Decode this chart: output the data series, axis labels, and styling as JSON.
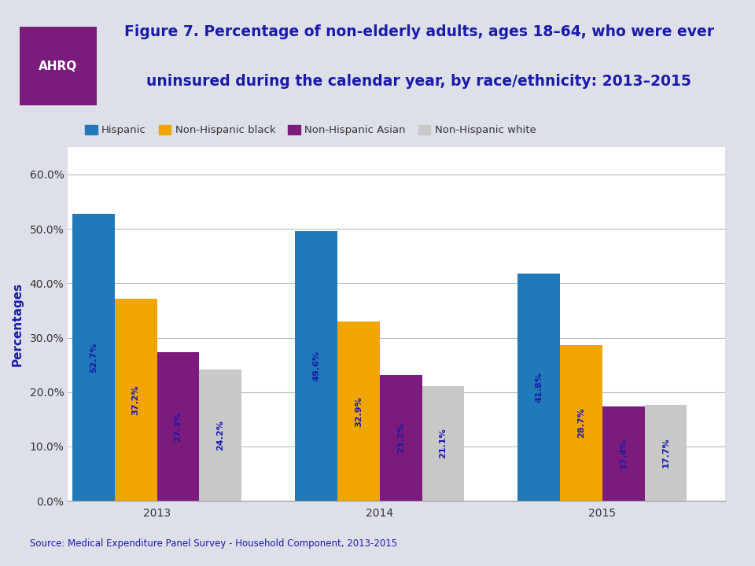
{
  "title_line1": "Figure 7. Percentage of non-elderly adults, ages 18–64, who were ever",
  "title_line2": "uninsured during the calendar year, by race/ethnicity: 2013–2015",
  "title_color": "#1a1aaa",
  "title_fontsize": 13.5,
  "ylabel": "Percentages",
  "ylabel_color": "#1a1aaa",
  "source_text": "Source: Medical Expenditure Panel Survey - Household Component, 2013-2015",
  "categories": [
    "2013",
    "2014",
    "2015"
  ],
  "series": [
    {
      "label": "Hispanic",
      "values": [
        52.7,
        49.6,
        41.8
      ],
      "color": "#2079B8"
    },
    {
      "label": "Non-Hispanic black",
      "values": [
        37.2,
        32.9,
        28.7
      ],
      "color": "#F0A500"
    },
    {
      "label": "Non-Hispanic Asian",
      "values": [
        27.3,
        23.2,
        17.4
      ],
      "color": "#7B1C7C"
    },
    {
      "label": "Non-Hispanic white",
      "values": [
        24.2,
        21.1,
        17.7
      ],
      "color": "#C8C8C8"
    }
  ],
  "ylim": [
    0,
    65
  ],
  "yticks": [
    0,
    10,
    20,
    30,
    40,
    50,
    60
  ],
  "ytick_labels": [
    "0.0%",
    "10.0%",
    "20.0%",
    "30.0%",
    "40.0%",
    "50.0%",
    "60.0%"
  ],
  "bar_width": 0.19,
  "group_centers": [
    0.35,
    1.35,
    2.35
  ],
  "background_color": "#DDE0E8",
  "plot_background": "#FFFFFF",
  "label_fontsize": 8.0,
  "tick_fontsize": 10,
  "legend_fontsize": 9.5,
  "separator_color": "#999999",
  "grid_color": "#BBBBBB",
  "axis_label_color": "#1a1aaa"
}
